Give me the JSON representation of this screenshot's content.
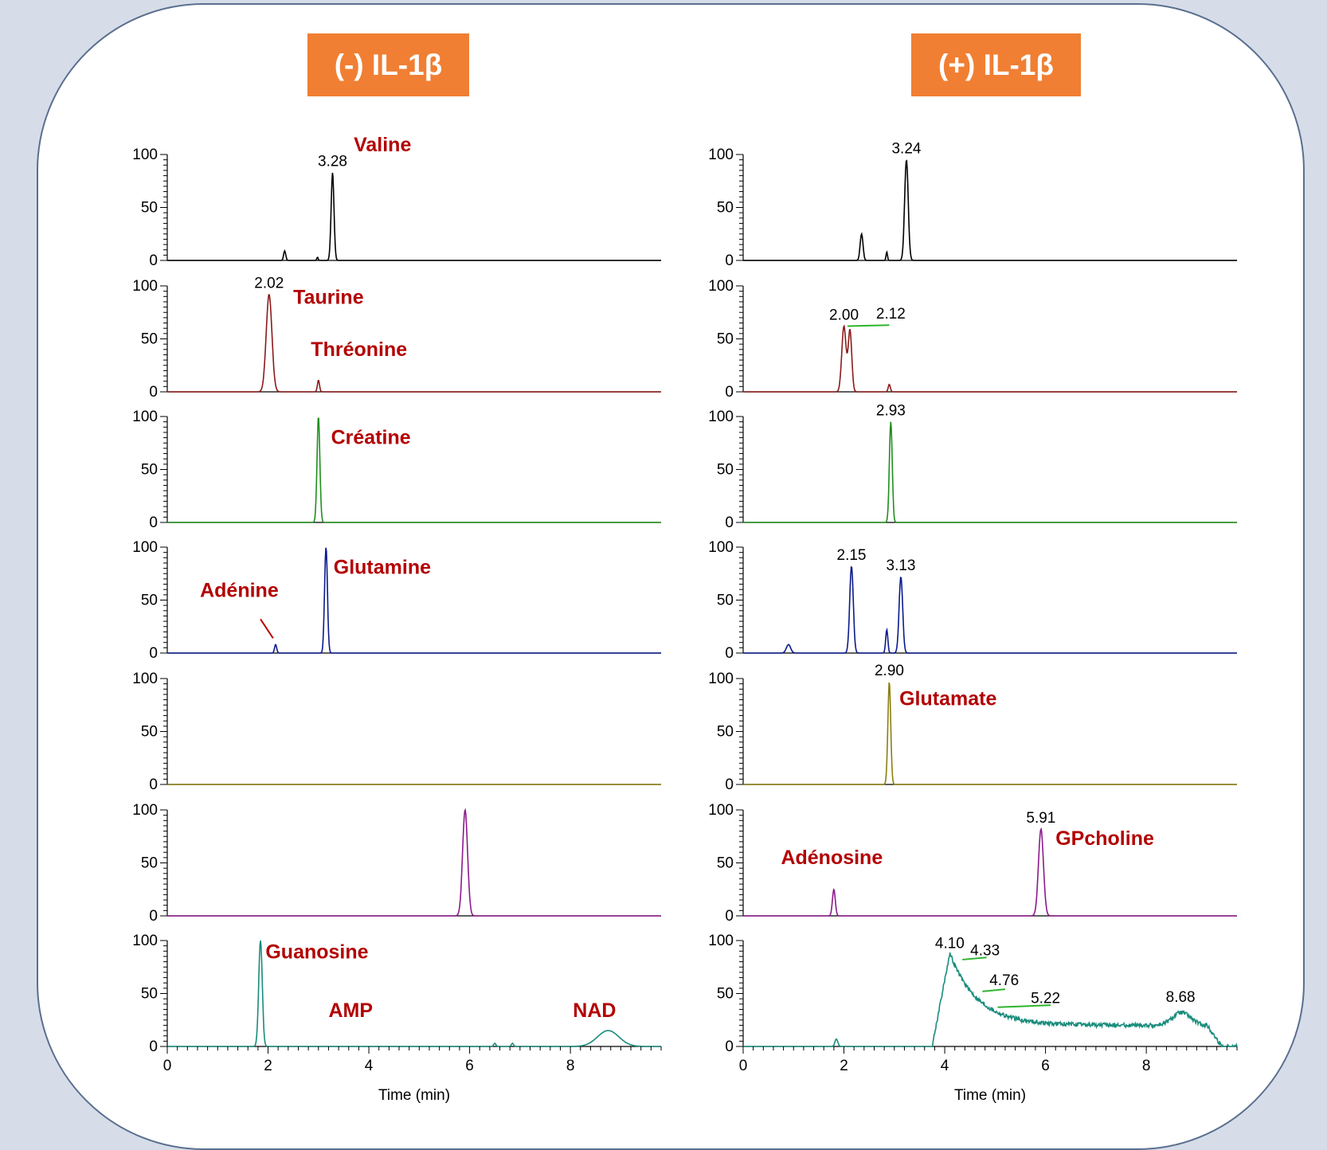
{
  "headers": {
    "left": "(-) IL-1β",
    "right": "(+) IL-1β"
  },
  "colors": {
    "header_bg": "#f07f33",
    "compound_label": "#b30000",
    "annotation_line": "#2db52d",
    "traces": [
      "#000000",
      "#8b1a1a",
      "#1f8f1f",
      "#0a1a8c",
      "#8c7f10",
      "#8c1a8c",
      "#1a8c7c"
    ]
  },
  "chart_data": [
    {
      "type": "line",
      "panel": "(-) IL-1β",
      "xlabel": "Time (min)",
      "x_ticks": [
        0,
        2,
        4,
        6,
        8
      ],
      "xlim": [
        0,
        9.8
      ],
      "y_ticks": [
        0,
        50,
        100
      ],
      "ylim": [
        0,
        100
      ],
      "traces": [
        {
          "peaks": [
            {
              "rt": 2.33,
              "height": 9,
              "width": 0.03
            },
            {
              "rt": 2.98,
              "height": 3,
              "width": 0.02
            },
            {
              "rt": 3.28,
              "height": 83,
              "width": 0.04,
              "label": "3.28"
            }
          ],
          "compounds": [
            {
              "name": "Valine",
              "x": 3.7,
              "y": 103
            }
          ],
          "pointers": []
        },
        {
          "peaks": [
            {
              "rt": 2.02,
              "height": 92,
              "width": 0.08,
              "label": "2.02"
            },
            {
              "rt": 3.0,
              "height": 11,
              "width": 0.03
            }
          ],
          "compounds": [
            {
              "name": "Taurine",
              "x": 2.5,
              "y": 83
            },
            {
              "name": "Thréonine",
              "x": 2.85,
              "y": 34
            }
          ],
          "pointers": []
        },
        {
          "peaks": [
            {
              "rt": 3.0,
              "height": 100,
              "width": 0.04
            }
          ],
          "compounds": [
            {
              "name": "Créatine",
              "x": 3.25,
              "y": 74
            }
          ],
          "pointers": []
        },
        {
          "peaks": [
            {
              "rt": 2.15,
              "height": 8,
              "width": 0.03
            },
            {
              "rt": 3.15,
              "height": 100,
              "width": 0.04
            }
          ],
          "compounds": [
            {
              "name": "Glutamine",
              "x": 3.3,
              "y": 75
            },
            {
              "name": "Adénine",
              "x": 0.65,
              "y": 53
            }
          ],
          "pointers": [
            {
              "x1": 1.85,
              "y1": 32,
              "x2": 2.1,
              "y2": 14,
              "color": "#b30000"
            }
          ]
        },
        {
          "peaks": [],
          "compounds": [],
          "pointers": []
        },
        {
          "peaks": [
            {
              "rt": 5.91,
              "height": 100,
              "width": 0.07
            }
          ],
          "compounds": [],
          "pointers": []
        },
        {
          "peaks": [
            {
              "rt": 1.85,
              "height": 100,
              "width": 0.05
            },
            {
              "rt": 6.5,
              "height": 3,
              "width": 0.03
            },
            {
              "rt": 6.85,
              "height": 3,
              "width": 0.03
            },
            {
              "rt": 8.75,
              "height": 15,
              "width": 0.3
            }
          ],
          "compounds": [
            {
              "name": "Guanosine",
              "x": 1.95,
              "y": 83
            },
            {
              "name": "AMP",
              "x": 3.2,
              "y": 28
            },
            {
              "name": "NAD",
              "x": 8.05,
              "y": 28
            }
          ],
          "pointers": []
        }
      ]
    },
    {
      "type": "line",
      "panel": "(+) IL-1β",
      "xlabel": "Time (min)",
      "x_ticks": [
        0,
        2,
        4,
        6,
        8
      ],
      "xlim": [
        0,
        9.8
      ],
      "y_ticks": [
        0,
        50,
        100
      ],
      "ylim": [
        0,
        100
      ],
      "traces": [
        {
          "peaks": [
            {
              "rt": 2.35,
              "height": 25,
              "width": 0.04
            },
            {
              "rt": 2.85,
              "height": 8,
              "width": 0.02
            },
            {
              "rt": 3.24,
              "height": 95,
              "width": 0.05,
              "label": "3.24"
            }
          ],
          "compounds": [],
          "pointers": []
        },
        {
          "peaks": [
            {
              "rt": 2.0,
              "height": 62,
              "width": 0.06,
              "label": "2.00"
            },
            {
              "rt": 2.12,
              "height": 58,
              "width": 0.05
            },
            {
              "rt": 2.9,
              "height": 7,
              "width": 0.03
            }
          ],
          "compounds": [],
          "pointers": [
            {
              "x1": 2.07,
              "y1": 62,
              "x2": 2.9,
              "y2": 63,
              "color": "#2db52d"
            }
          ],
          "extra_labels": [
            {
              "text": "2.12",
              "x": 2.93,
              "y": 69
            }
          ]
        },
        {
          "peaks": [
            {
              "rt": 2.93,
              "height": 95,
              "width": 0.04,
              "label": "2.93"
            }
          ],
          "compounds": [],
          "pointers": []
        },
        {
          "peaks": [
            {
              "rt": 0.9,
              "height": 8,
              "width": 0.06
            },
            {
              "rt": 2.15,
              "height": 82,
              "width": 0.05,
              "label": "2.15"
            },
            {
              "rt": 2.85,
              "height": 22,
              "width": 0.03
            },
            {
              "rt": 3.13,
              "height": 72,
              "width": 0.05,
              "label": "3.13"
            }
          ],
          "compounds": [],
          "pointers": []
        },
        {
          "peaks": [
            {
              "rt": 2.9,
              "height": 97,
              "width": 0.04,
              "label": "2.90"
            }
          ],
          "compounds": [
            {
              "name": "Glutamate",
              "x": 3.1,
              "y": 75
            }
          ],
          "pointers": []
        },
        {
          "peaks": [
            {
              "rt": 1.8,
              "height": 25,
              "width": 0.04
            },
            {
              "rt": 5.91,
              "height": 82,
              "width": 0.07,
              "label": "5.91"
            }
          ],
          "compounds": [
            {
              "name": "Adénosine",
              "x": 0.75,
              "y": 49
            },
            {
              "name": "GPcholine",
              "x": 6.2,
              "y": 67
            }
          ],
          "pointers": []
        },
        {
          "peaks": [
            {
              "rt": 1.85,
              "height": 7,
              "width": 0.04
            }
          ],
          "broad": true,
          "compounds": [],
          "pointers": [
            {
              "x1": 4.35,
              "y1": 82,
              "x2": 4.83,
              "y2": 84,
              "color": "#2db52d"
            },
            {
              "x1": 4.75,
              "y1": 52,
              "x2": 5.2,
              "y2": 54,
              "color": "#2db52d"
            },
            {
              "x1": 5.05,
              "y1": 37,
              "x2": 6.1,
              "y2": 39,
              "color": "#2db52d"
            }
          ],
          "extra_labels": [
            {
              "text": "4.10",
              "x": 4.1,
              "y": 93
            },
            {
              "text": "4.33",
              "x": 4.8,
              "y": 86
            },
            {
              "text": "4.76",
              "x": 5.18,
              "y": 58
            },
            {
              "text": "5.22",
              "x": 6.0,
              "y": 41
            },
            {
              "text": "8.68",
              "x": 8.68,
              "y": 42
            }
          ]
        }
      ]
    }
  ]
}
